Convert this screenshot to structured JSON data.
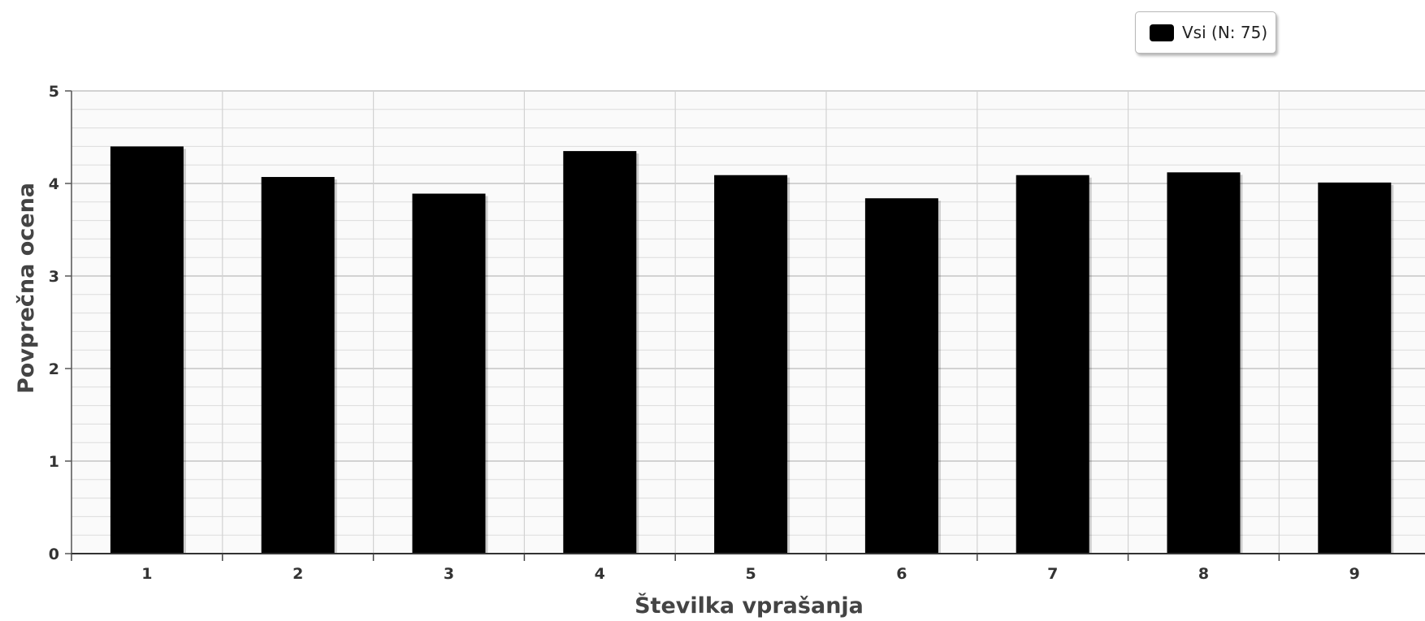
{
  "chart_data": {
    "type": "bar",
    "categories": [
      "1",
      "2",
      "3",
      "4",
      "5",
      "6",
      "7",
      "8",
      "9"
    ],
    "series": [
      {
        "name": "Vsi (N: 75)",
        "values": [
          4.4,
          4.07,
          3.89,
          4.35,
          4.09,
          3.84,
          4.09,
          4.12,
          4.01
        ],
        "color": "#000000"
      }
    ],
    "xlabel": "Številka vprašanja",
    "ylabel": "Povprečna ocena",
    "ylim": [
      0,
      5
    ],
    "yticks": [
      "0",
      "1",
      "2",
      "3",
      "4",
      "5"
    ],
    "grid": true,
    "legend_position": "top-right"
  }
}
